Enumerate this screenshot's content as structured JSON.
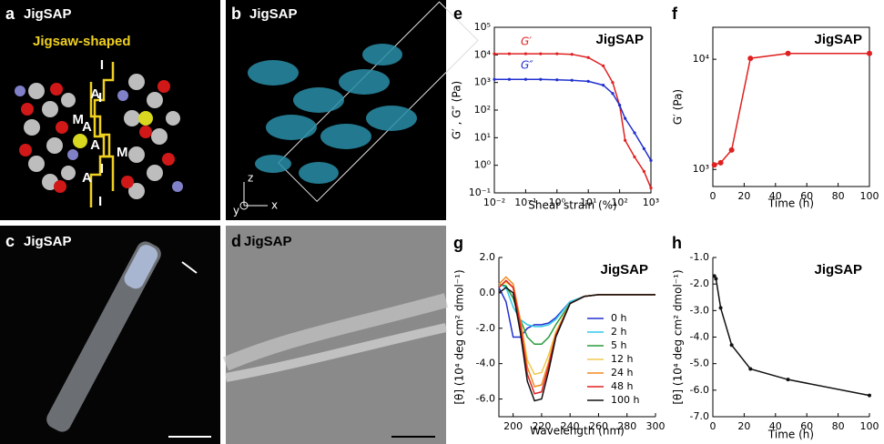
{
  "panels": [
    {
      "label": "a",
      "title": "JigSAP",
      "caption": "Jigsaw-shaped",
      "left_segments": [
        "I",
        "A",
        "M",
        "A",
        "I"
      ],
      "right_segments": [
        "I",
        "A",
        "M",
        "A",
        "I"
      ]
    },
    {
      "label": "b",
      "title": "JigSAP",
      "axes": [
        "z",
        "y",
        "x"
      ]
    },
    {
      "label": "c",
      "title": "JigSAP"
    },
    {
      "label": "d",
      "title": "JigSAP"
    }
  ],
  "chart_data": [
    {
      "type": "line",
      "label": "e",
      "annotation": "JigSAP",
      "xlabel": "Shear strain (%)",
      "ylabel": "G′ , G″ (Pa)",
      "xlog": true,
      "ylog": true,
      "xlim": [
        0.01,
        1000
      ],
      "ylim": [
        0.1,
        100000
      ],
      "xticks": [
        {
          "value": 0.01,
          "label": "10⁻²"
        },
        {
          "value": 0.1,
          "label": "10⁻¹"
        },
        {
          "value": 1,
          "label": "10⁰"
        },
        {
          "value": 10,
          "label": "10¹"
        },
        {
          "value": 100,
          "label": "10²"
        },
        {
          "value": 1000,
          "label": "10³"
        }
      ],
      "yticks": [
        {
          "value": 0.1,
          "label": "10⁻¹"
        },
        {
          "value": 1,
          "label": "10⁰"
        },
        {
          "value": 10,
          "label": "10¹"
        },
        {
          "value": 100,
          "label": "10²"
        },
        {
          "value": 1000,
          "label": "10³"
        },
        {
          "value": 10000,
          "label": "10⁴"
        },
        {
          "value": 100000,
          "label": "10⁵"
        }
      ],
      "x": [
        0.01,
        0.03,
        0.1,
        0.3,
        1,
        3,
        10,
        30,
        60,
        100,
        150,
        300,
        600,
        1000
      ],
      "series": [
        {
          "name": "G′",
          "color": "#e02020",
          "values": [
            11000,
            11000,
            11000,
            11000,
            11000,
            10500,
            8000,
            4000,
            1000,
            150,
            8,
            2,
            0.6,
            0.15
          ]
        },
        {
          "name": "G″",
          "color": "#2030d0",
          "values": [
            1300,
            1300,
            1300,
            1300,
            1250,
            1200,
            1100,
            800,
            400,
            150,
            50,
            15,
            4,
            1.5
          ]
        }
      ]
    },
    {
      "type": "line",
      "label": "f",
      "annotation": "JigSAP",
      "xlabel": "Time (h)",
      "ylabel": "G′ (Pa)",
      "ylog": true,
      "xlim": [
        0,
        100
      ],
      "ylim": [
        700,
        19500
      ],
      "xticks": [
        0,
        20,
        40,
        60,
        80,
        100
      ],
      "yticks": [
        {
          "value": 1000,
          "label": "10³"
        },
        {
          "value": 10000,
          "label": "10⁴"
        }
      ],
      "x": [
        1,
        5,
        12,
        24,
        48,
        100
      ],
      "color": "#e02020",
      "values": [
        1100,
        1150,
        1500,
        10200,
        11300,
        11300
      ]
    },
    {
      "type": "line",
      "label": "g",
      "annotation": "JigSAP",
      "xlabel": "Wavelength (nm)",
      "ylabel": "[θ] (10⁴ deg cm² dmol⁻¹)",
      "xlim": [
        190,
        300
      ],
      "ylim": [
        -7,
        2
      ],
      "xticks": [
        200,
        220,
        240,
        260,
        280,
        300
      ],
      "yticks": [
        {
          "value": -6,
          "label": "-6.0"
        },
        {
          "value": -4,
          "label": "-4.0"
        },
        {
          "value": -2,
          "label": "-2.0"
        },
        {
          "value": 0,
          "label": "0.0"
        },
        {
          "value": 2,
          "label": "2.0"
        }
      ],
      "x": [
        190,
        195,
        200,
        205,
        210,
        215,
        220,
        225,
        230,
        240,
        250,
        260,
        280,
        300
      ],
      "series": [
        {
          "name": "0 h",
          "color": "#2030d0",
          "values": [
            0.3,
            -0.5,
            -2.5,
            -2.5,
            -2.0,
            -1.8,
            -1.8,
            -1.7,
            -1.4,
            -0.5,
            -0.2,
            -0.1,
            -0.1,
            -0.1
          ]
        },
        {
          "name": "2 h",
          "color": "#30c8e8",
          "values": [
            0.5,
            0.3,
            -0.8,
            -1.5,
            -1.8,
            -1.9,
            -1.9,
            -1.8,
            -1.5,
            -0.5,
            -0.2,
            -0.1,
            -0.1,
            -0.1
          ]
        },
        {
          "name": "5 h",
          "color": "#2a9a3a",
          "values": [
            0.5,
            0.4,
            -0.3,
            -1.5,
            -2.5,
            -2.9,
            -2.9,
            -2.5,
            -1.8,
            -0.6,
            -0.2,
            -0.1,
            -0.1,
            -0.1
          ]
        },
        {
          "name": "12 h",
          "color": "#f0c850",
          "values": [
            0.4,
            0.6,
            0.3,
            -1.5,
            -3.8,
            -4.6,
            -4.5,
            -3.5,
            -2.2,
            -0.6,
            -0.2,
            -0.1,
            -0.1,
            -0.1
          ]
        },
        {
          "name": "24 h",
          "color": "#f08a20",
          "values": [
            0.5,
            0.9,
            0.5,
            -1.5,
            -4.2,
            -5.3,
            -5.2,
            -3.9,
            -2.3,
            -0.6,
            -0.2,
            -0.1,
            -0.1,
            -0.1
          ]
        },
        {
          "name": "48 h",
          "color": "#e02020",
          "values": [
            0.3,
            0.7,
            0.3,
            -1.8,
            -4.6,
            -5.7,
            -5.6,
            -4.1,
            -2.4,
            -0.6,
            -0.2,
            -0.1,
            -0.1,
            -0.1
          ]
        },
        {
          "name": "100 h",
          "color": "#111111",
          "values": [
            0,
            0.3,
            0,
            -2.2,
            -5.0,
            -6.1,
            -6.0,
            -4.4,
            -2.5,
            -0.6,
            -0.2,
            -0.1,
            -0.1,
            -0.1
          ]
        }
      ]
    },
    {
      "type": "line",
      "label": "h",
      "annotation": "JigSAP",
      "xlabel": "Time (h)",
      "ylabel": "[θ] (10⁴ deg cm² dmol⁻¹)",
      "xlim": [
        0,
        100
      ],
      "ylim": [
        -7,
        -1
      ],
      "xticks": [
        0,
        20,
        40,
        60,
        80,
        100
      ],
      "yticks": [
        {
          "value": -7,
          "label": "-7.0"
        },
        {
          "value": -6,
          "label": "-6.0"
        },
        {
          "value": -5,
          "label": "-5.0"
        },
        {
          "value": -4,
          "label": "-4.0"
        },
        {
          "value": -3,
          "label": "-3.0"
        },
        {
          "value": -2,
          "label": "-2.0"
        },
        {
          "value": -1,
          "label": "-1.0"
        }
      ],
      "x": [
        1,
        2,
        5,
        12,
        24,
        48,
        100
      ],
      "color": "#111111",
      "values": [
        -1.7,
        -1.8,
        -2.9,
        -4.3,
        -5.2,
        -5.6,
        -6.2
      ]
    }
  ]
}
